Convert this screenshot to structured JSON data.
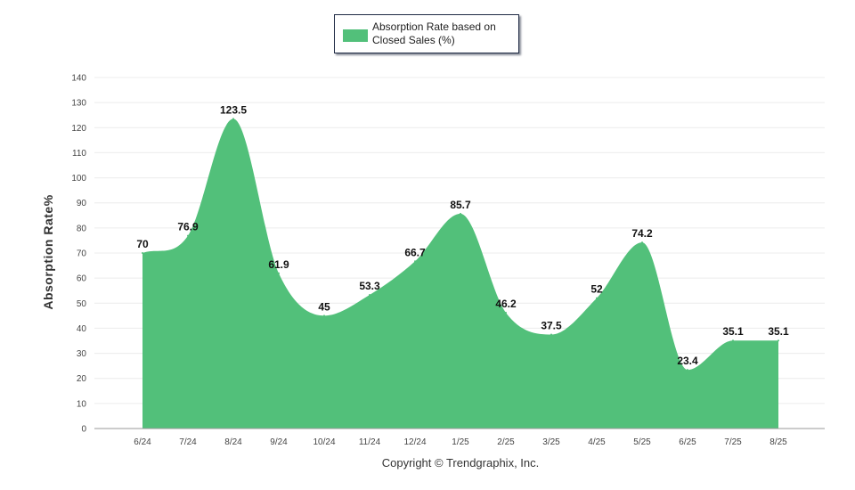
{
  "chart_data": {
    "type": "area",
    "series": [
      {
        "name": "Absorption Rate based on Closed Sales (%)",
        "values": [
          70,
          76.9,
          123.5,
          61.9,
          45,
          53.3,
          66.7,
          85.7,
          46.2,
          37.5,
          52,
          74.2,
          23.4,
          35.1,
          35.1
        ],
        "labels": [
          "70",
          "76.9",
          "123.5",
          "61.9",
          "45",
          "53.3",
          "66.7",
          "85.7",
          "46.2",
          "37.5",
          "52",
          "74.2",
          "23.4",
          "35.1",
          "35.1"
        ],
        "color": "#52c07a"
      }
    ],
    "categories": [
      "6/24",
      "7/24",
      "8/24",
      "9/24",
      "10/24",
      "11/24",
      "12/24",
      "1/25",
      "2/25",
      "3/25",
      "4/25",
      "5/25",
      "6/25",
      "7/25",
      "8/25"
    ],
    "ylabel": "Absorption Rate%",
    "ylim": [
      0,
      140
    ],
    "yticks": [
      "0",
      "10",
      "20",
      "30",
      "40",
      "50",
      "60",
      "70",
      "80",
      "90",
      "100",
      "110",
      "120",
      "130",
      "140"
    ],
    "grid": true,
    "legend_position": "top-center",
    "smooth": true
  },
  "legend": {
    "label": "Absorption Rate based on Closed Sales (%)"
  },
  "credit": "Copyright © Trendgraphix, Inc."
}
